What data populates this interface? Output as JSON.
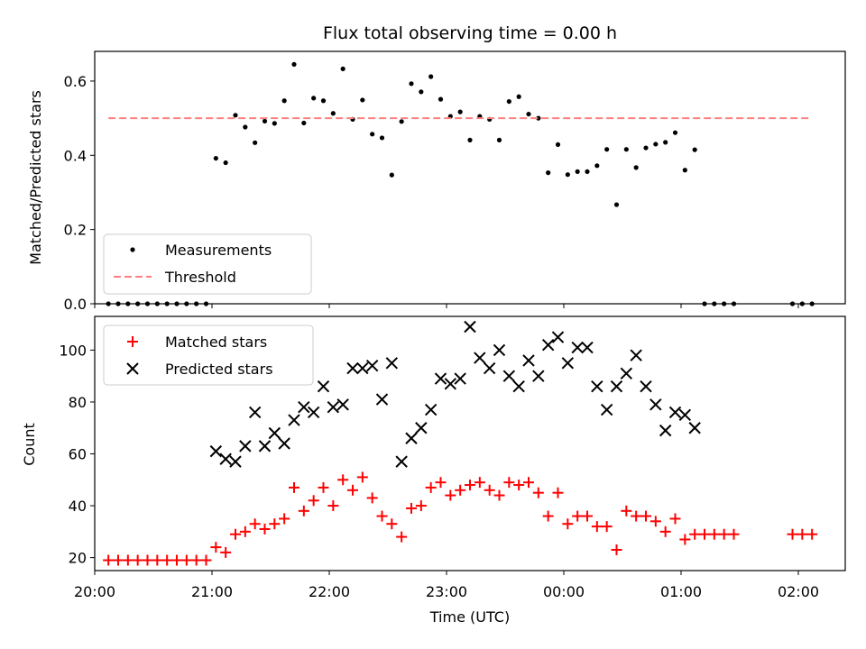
{
  "chart_data": [
    {
      "type": "scatter",
      "title": "Flux total observing time = 0.00 h",
      "ylabel": "Matched/Predicted stars",
      "ylim": [
        0,
        0.68
      ],
      "yticks": [
        0.0,
        0.2,
        0.4,
        0.6
      ],
      "ytick_labels": [
        "0.0",
        "0.2",
        "0.4",
        "0.6"
      ],
      "legend_position": "lower-left",
      "series": [
        {
          "name": "Measurements",
          "kind": "points",
          "marker": "dot",
          "color": "#000000",
          "points": [
            [
              "20:07",
              0
            ],
            [
              "20:12",
              0
            ],
            [
              "20:17",
              0
            ],
            [
              "20:22",
              0
            ],
            [
              "20:27",
              0
            ],
            [
              "20:32",
              0
            ],
            [
              "20:37",
              0
            ],
            [
              "20:42",
              0
            ],
            [
              "20:47",
              0
            ],
            [
              "20:52",
              0
            ],
            [
              "20:57",
              0
            ],
            [
              "21:02",
              0.392
            ],
            [
              "21:07",
              0.38
            ],
            [
              "21:12",
              0.508
            ],
            [
              "21:17",
              0.476
            ],
            [
              "21:22",
              0.434
            ],
            [
              "21:27",
              0.492
            ],
            [
              "21:32",
              0.486
            ],
            [
              "21:37",
              0.547
            ],
            [
              "21:42",
              0.645
            ],
            [
              "21:47",
              0.487
            ],
            [
              "21:52",
              0.554
            ],
            [
              "21:57",
              0.547
            ],
            [
              "22:02",
              0.513
            ],
            [
              "22:07",
              0.633
            ],
            [
              "22:12",
              0.497
            ],
            [
              "22:17",
              0.549
            ],
            [
              "22:22",
              0.457
            ],
            [
              "22:27",
              0.447
            ],
            [
              "22:32",
              0.347
            ],
            [
              "22:37",
              0.491
            ],
            [
              "22:42",
              0.593
            ],
            [
              "22:47",
              0.571
            ],
            [
              "22:52",
              0.612
            ],
            [
              "22:57",
              0.551
            ],
            [
              "23:02",
              0.505
            ],
            [
              "23:07",
              0.517
            ],
            [
              "23:12",
              0.441
            ],
            [
              "23:17",
              0.505
            ],
            [
              "23:22",
              0.497
            ],
            [
              "23:27",
              0.441
            ],
            [
              "23:32",
              0.545
            ],
            [
              "23:37",
              0.558
            ],
            [
              "23:42",
              0.511
            ],
            [
              "23:47",
              0.5
            ],
            [
              "23:52",
              0.353
            ],
            [
              "23:57",
              0.429
            ],
            [
              "00:02",
              0.348
            ],
            [
              "00:07",
              0.356
            ],
            [
              "00:12",
              0.356
            ],
            [
              "00:17",
              0.372
            ],
            [
              "00:22",
              0.416
            ],
            [
              "00:27",
              0.267
            ],
            [
              "00:32",
              0.416
            ],
            [
              "00:37",
              0.367
            ],
            [
              "00:42",
              0.42
            ],
            [
              "00:47",
              0.43
            ],
            [
              "00:52",
              0.435
            ],
            [
              "00:57",
              0.461
            ],
            [
              "01:02",
              0.36
            ],
            [
              "01:07",
              0.415
            ],
            [
              "01:12",
              0
            ],
            [
              "01:17",
              0
            ],
            [
              "01:22",
              0
            ],
            [
              "01:27",
              0
            ],
            [
              "01:57",
              0
            ],
            [
              "02:02",
              0
            ],
            [
              "02:07",
              0
            ]
          ]
        },
        {
          "name": "Threshold",
          "kind": "line",
          "style": "dashed",
          "color": "#ff8080",
          "x": [
            "20:07",
            "02:07"
          ],
          "y": [
            0.5,
            0.5
          ]
        }
      ]
    },
    {
      "type": "scatter",
      "xlabel": "Time (UTC)",
      "ylabel": "Count",
      "ylim": [
        15,
        113
      ],
      "yticks": [
        20,
        40,
        60,
        80,
        100
      ],
      "ytick_labels": [
        "20",
        "40",
        "60",
        "80",
        "100"
      ],
      "xlim": [
        "20:00",
        "02:24"
      ],
      "xticks": [
        "20:00",
        "21:00",
        "22:00",
        "23:00",
        "00:00",
        "01:00",
        "02:00"
      ],
      "xtick_labels": [
        "20:00",
        "21:00",
        "22:00",
        "23:00",
        "00:00",
        "01:00",
        "02:00"
      ],
      "legend_position": "upper-left",
      "series": [
        {
          "name": "Matched stars",
          "kind": "points",
          "marker": "plus",
          "color": "#ff0000",
          "points": [
            [
              "20:07",
              19
            ],
            [
              "20:12",
              19
            ],
            [
              "20:17",
              19
            ],
            [
              "20:22",
              19
            ],
            [
              "20:27",
              19
            ],
            [
              "20:32",
              19
            ],
            [
              "20:37",
              19
            ],
            [
              "20:42",
              19
            ],
            [
              "20:47",
              19
            ],
            [
              "20:52",
              19
            ],
            [
              "20:57",
              19
            ],
            [
              "21:02",
              24
            ],
            [
              "21:07",
              22
            ],
            [
              "21:12",
              29
            ],
            [
              "21:17",
              30
            ],
            [
              "21:22",
              33
            ],
            [
              "21:27",
              31
            ],
            [
              "21:32",
              33
            ],
            [
              "21:37",
              35
            ],
            [
              "21:42",
              47
            ],
            [
              "21:47",
              38
            ],
            [
              "21:52",
              42
            ],
            [
              "21:57",
              47
            ],
            [
              "22:02",
              40
            ],
            [
              "22:07",
              50
            ],
            [
              "22:12",
              46
            ],
            [
              "22:17",
              51
            ],
            [
              "22:22",
              43
            ],
            [
              "22:27",
              36
            ],
            [
              "22:32",
              33
            ],
            [
              "22:37",
              28
            ],
            [
              "22:42",
              39
            ],
            [
              "22:47",
              40
            ],
            [
              "22:52",
              47
            ],
            [
              "22:57",
              49
            ],
            [
              "23:02",
              44
            ],
            [
              "23:07",
              46
            ],
            [
              "23:12",
              48
            ],
            [
              "23:17",
              49
            ],
            [
              "23:22",
              46
            ],
            [
              "23:27",
              44
            ],
            [
              "23:32",
              49
            ],
            [
              "23:37",
              48
            ],
            [
              "23:42",
              49
            ],
            [
              "23:47",
              45
            ],
            [
              "23:52",
              36
            ],
            [
              "23:57",
              45
            ],
            [
              "00:02",
              33
            ],
            [
              "00:07",
              36
            ],
            [
              "00:12",
              36
            ],
            [
              "00:17",
              32
            ],
            [
              "00:22",
              32
            ],
            [
              "00:27",
              23
            ],
            [
              "00:32",
              38
            ],
            [
              "00:37",
              36
            ],
            [
              "00:42",
              36
            ],
            [
              "00:47",
              34
            ],
            [
              "00:52",
              30
            ],
            [
              "00:57",
              35
            ],
            [
              "01:02",
              27
            ],
            [
              "01:07",
              29
            ],
            [
              "01:12",
              29
            ],
            [
              "01:17",
              29
            ],
            [
              "01:22",
              29
            ],
            [
              "01:27",
              29
            ],
            [
              "01:57",
              29
            ],
            [
              "02:02",
              29
            ],
            [
              "02:07",
              29
            ]
          ]
        },
        {
          "name": "Predicted stars",
          "kind": "points",
          "marker": "x",
          "color": "#000000",
          "points": [
            [
              "21:02",
              61
            ],
            [
              "21:07",
              58
            ],
            [
              "21:12",
              57
            ],
            [
              "21:17",
              63
            ],
            [
              "21:22",
              76
            ],
            [
              "21:27",
              63
            ],
            [
              "21:32",
              68
            ],
            [
              "21:37",
              64
            ],
            [
              "21:42",
              73
            ],
            [
              "21:47",
              78
            ],
            [
              "21:52",
              76
            ],
            [
              "21:57",
              86
            ],
            [
              "22:02",
              78
            ],
            [
              "22:07",
              79
            ],
            [
              "22:12",
              93
            ],
            [
              "22:17",
              93
            ],
            [
              "22:22",
              94
            ],
            [
              "22:27",
              81
            ],
            [
              "22:32",
              95
            ],
            [
              "22:37",
              57
            ],
            [
              "22:42",
              66
            ],
            [
              "22:47",
              70
            ],
            [
              "22:52",
              77
            ],
            [
              "22:57",
              89
            ],
            [
              "23:02",
              87
            ],
            [
              "23:07",
              89
            ],
            [
              "23:12",
              109
            ],
            [
              "23:17",
              97
            ],
            [
              "23:22",
              93
            ],
            [
              "23:27",
              100
            ],
            [
              "23:32",
              90
            ],
            [
              "23:37",
              86
            ],
            [
              "23:42",
              96
            ],
            [
              "23:47",
              90
            ],
            [
              "23:52",
              102
            ],
            [
              "23:57",
              105
            ],
            [
              "00:02",
              95
            ],
            [
              "00:07",
              101
            ],
            [
              "00:12",
              101
            ],
            [
              "00:17",
              86
            ],
            [
              "00:22",
              77
            ],
            [
              "00:27",
              86
            ],
            [
              "00:32",
              91
            ],
            [
              "00:37",
              98
            ],
            [
              "00:42",
              86
            ],
            [
              "00:47",
              79
            ],
            [
              "00:52",
              69
            ],
            [
              "00:57",
              76
            ],
            [
              "01:02",
              75
            ],
            [
              "01:07",
              70
            ]
          ]
        }
      ]
    }
  ]
}
